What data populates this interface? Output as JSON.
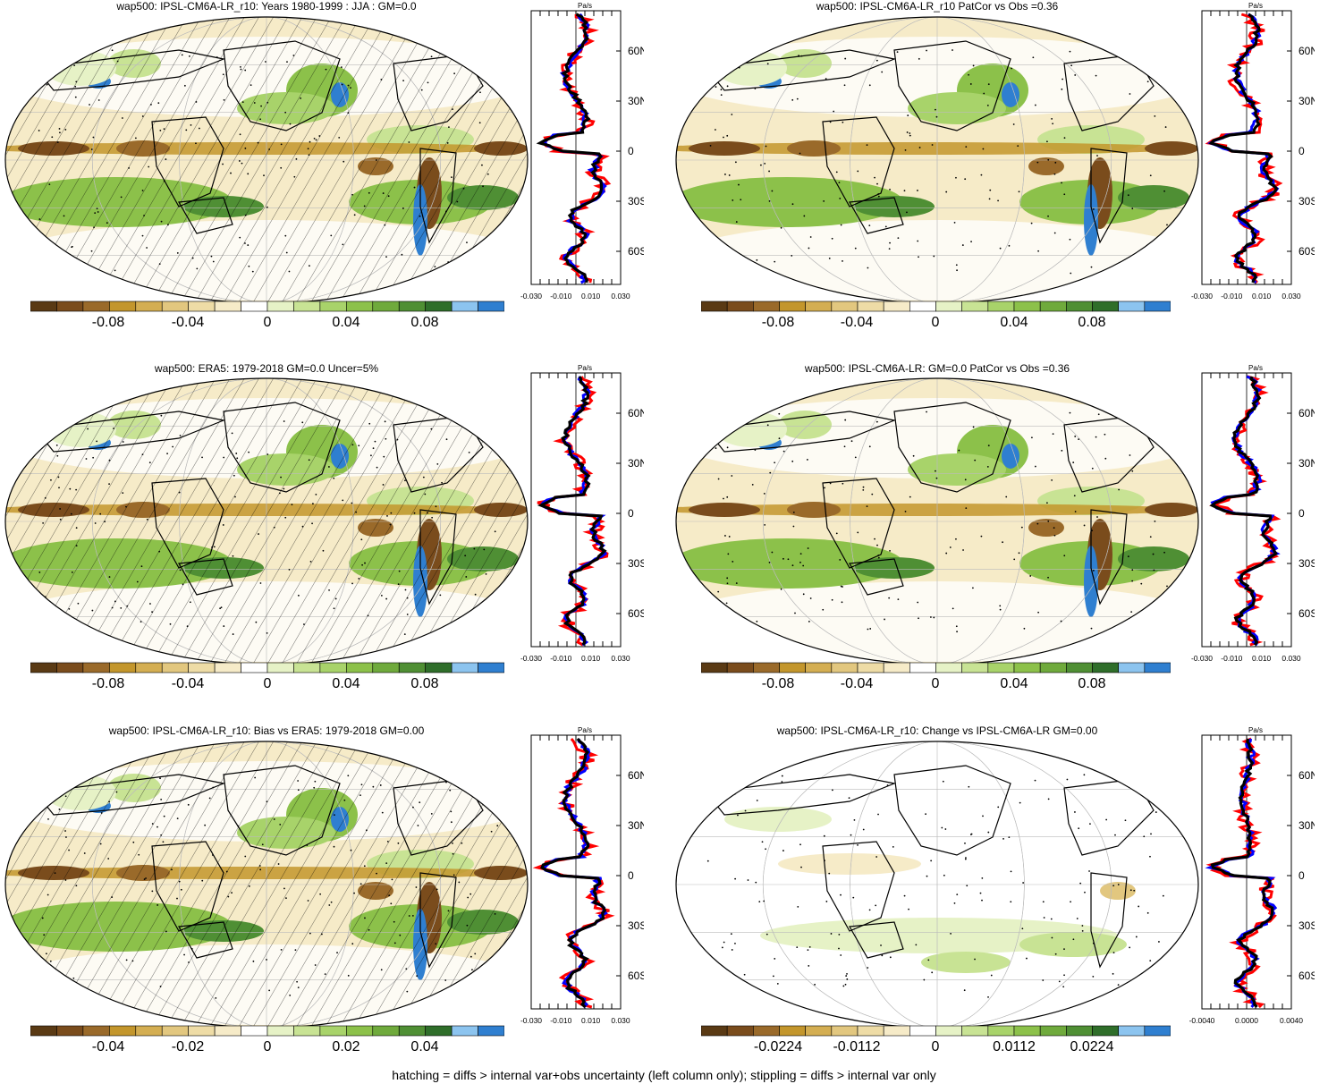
{
  "colors": {
    "scale": [
      "#5a3a14",
      "#7a4c1c",
      "#9a6a2a",
      "#c3962c",
      "#d4ae52",
      "#e2c77f",
      "#eedca6",
      "#f6ebc8",
      "#ffffff",
      "#e6f2c6",
      "#c8e394",
      "#a8d36a",
      "#8cc14a",
      "#6faa3c",
      "#4f8f34",
      "#2f6e2a",
      "#8cc4ef",
      "#2f7fd0"
    ],
    "obs_line": "#ff0000",
    "model_line": "#0000ff",
    "mean_line": "#000000"
  },
  "panels": [
    {
      "title": "wap500: IPSL-CM6A-LR_r10: Years 1980-1999 : JJA : GM=0.0",
      "colorbar_labels": [
        "-0.08",
        "-0.04",
        "0",
        "0.04",
        "0.08"
      ],
      "profile_units": "Pa/s",
      "profile_xticks": [
        "-0.030",
        "-0.010",
        "0.010",
        "0.030"
      ],
      "profile_yticks": [
        "60N",
        "30N",
        "0",
        "30S",
        "60S"
      ],
      "hatching": true
    },
    {
      "title": "wap500: IPSL-CM6A-LR_r10 PatCor vs Obs =0.36",
      "colorbar_labels": [
        "-0.08",
        "-0.04",
        "0",
        "0.04",
        "0.08"
      ],
      "profile_units": "Pa/s",
      "profile_xticks": [
        "-0.030",
        "-0.010",
        "0.010",
        "0.030"
      ],
      "profile_yticks": [
        "60N",
        "30N",
        "0",
        "30S",
        "60S"
      ],
      "hatching": false
    },
    {
      "title": "wap500: ERA5: 1979-2018 GM=0.0 Uncer=5%",
      "colorbar_labels": [
        "-0.08",
        "-0.04",
        "0",
        "0.04",
        "0.08"
      ],
      "profile_units": "Pa/s",
      "profile_xticks": [
        "-0.030",
        "-0.010",
        "0.010",
        "0.030"
      ],
      "profile_yticks": [
        "60N",
        "30N",
        "0",
        "30S",
        "60S"
      ],
      "hatching": true
    },
    {
      "title": "wap500: IPSL-CM6A-LR: GM=0.0 PatCor vs Obs =0.36",
      "colorbar_labels": [
        "-0.08",
        "-0.04",
        "0",
        "0.04",
        "0.08"
      ],
      "profile_units": "Pa/s",
      "profile_xticks": [
        "-0.030",
        "-0.010",
        "0.010",
        "0.030"
      ],
      "profile_yticks": [
        "60N",
        "30N",
        "0",
        "30S",
        "60S"
      ],
      "hatching": false
    },
    {
      "title": "wap500: IPSL-CM6A-LR_r10: Bias vs ERA5: 1979-2018 GM=0.00",
      "colorbar_labels": [
        "-0.04",
        "-0.02",
        "0",
        "0.02",
        "0.04"
      ],
      "profile_units": "Pa/s",
      "profile_xticks": [
        "-0.030",
        "-0.010",
        "0.010",
        "0.030"
      ],
      "profile_yticks": [
        "60N",
        "30N",
        "0",
        "30S",
        "60S"
      ],
      "hatching": true
    },
    {
      "title": "wap500: IPSL-CM6A-LR_r10: Change vs IPSL-CM6A-LR GM=0.00",
      "colorbar_labels": [
        "-0.0224",
        "-0.0112",
        "0",
        "0.0112",
        "0.0224"
      ],
      "profile_units": "Pa/s",
      "profile_xticks": [
        "-0.0040",
        "0.0000",
        "0.0040"
      ],
      "profile_yticks": [
        "60N",
        "30N",
        "0",
        "30S",
        "60S"
      ],
      "hatching": false
    }
  ],
  "footer": "hatching = diffs > internal var+obs uncertainty (left column only); stippling = diffs > internal var only"
}
